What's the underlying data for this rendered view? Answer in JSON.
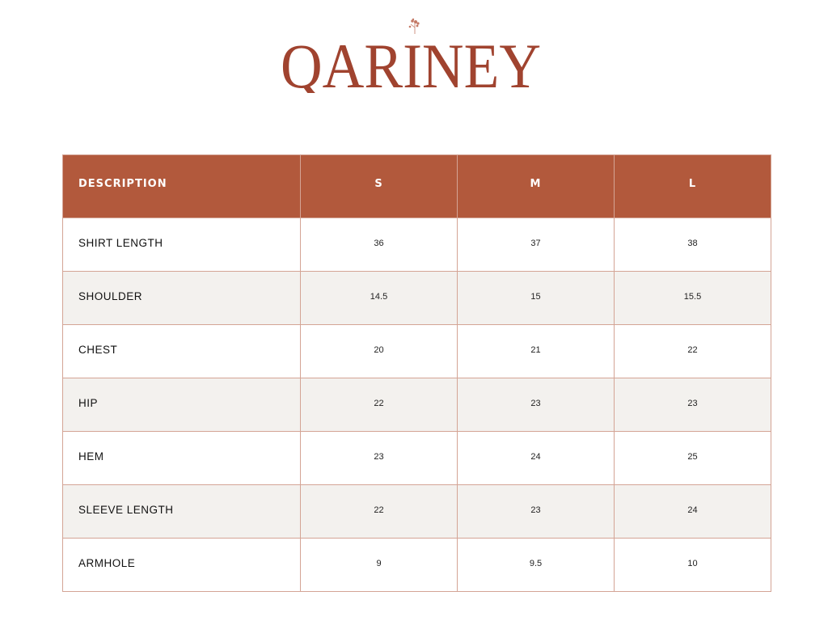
{
  "brand": {
    "logo_text": "QARINEY",
    "color": "#a0432f"
  },
  "table": {
    "header_color": "#b2593c",
    "alt_row_color": "#f3f1ee",
    "columns": [
      "DESCRIPTION",
      "S",
      "M",
      "L"
    ],
    "rows": [
      {
        "label": "SHIRT LENGTH",
        "values": [
          "36",
          "37",
          "38"
        ]
      },
      {
        "label": "SHOULDER",
        "values": [
          "14.5",
          "15",
          "15.5"
        ]
      },
      {
        "label": "CHEST",
        "values": [
          "20",
          "21",
          "22"
        ]
      },
      {
        "label": "HIP",
        "values": [
          "22",
          "23",
          "23"
        ]
      },
      {
        "label": "HEM",
        "values": [
          "23",
          "24",
          "25"
        ]
      },
      {
        "label": "SLEEVE LENGTH",
        "values": [
          "22",
          "23",
          "24"
        ]
      },
      {
        "label": "ARMHOLE",
        "values": [
          "9",
          "9.5",
          "10"
        ]
      }
    ]
  }
}
